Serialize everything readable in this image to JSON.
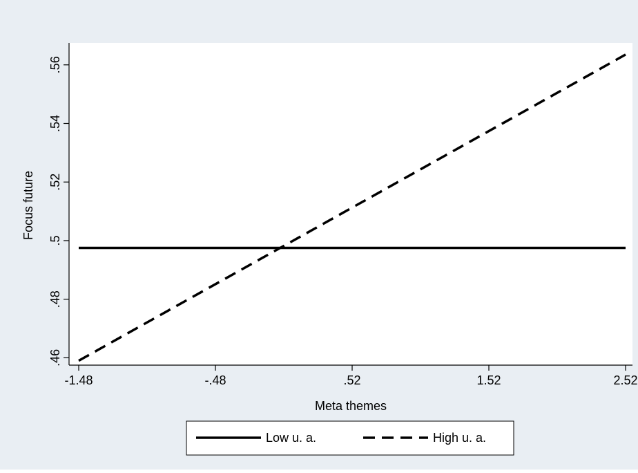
{
  "chart_data": {
    "type": "line",
    "title": "",
    "xlabel": "Meta themes",
    "ylabel": "Focus future",
    "x_ticks": [
      {
        "value": -1.48,
        "label": "-1.48"
      },
      {
        "value": -0.48,
        "label": "-.48"
      },
      {
        "value": 0.52,
        "label": ".52"
      },
      {
        "value": 1.52,
        "label": "1.52"
      },
      {
        "value": 2.52,
        "label": "2.52"
      }
    ],
    "y_ticks": [
      {
        "value": 0.46,
        "label": ".46"
      },
      {
        "value": 0.48,
        "label": ".48"
      },
      {
        "value": 0.5,
        "label": ".5"
      },
      {
        "value": 0.52,
        "label": ".52"
      },
      {
        "value": 0.54,
        "label": ".54"
      },
      {
        "value": 0.56,
        "label": ".56"
      }
    ],
    "xlim": [
      -1.48,
      2.52
    ],
    "ylim": [
      0.4575,
      0.5675
    ],
    "grid": false,
    "legend_position": "bottom",
    "series": [
      {
        "name": "Low u. a.",
        "style": "solid",
        "color": "#000000",
        "x": [
          -1.48,
          2.52
        ],
        "y": [
          0.4975,
          0.4975
        ]
      },
      {
        "name": "High u. a.",
        "style": "dashed",
        "color": "#000000",
        "x": [
          -1.48,
          2.52
        ],
        "y": [
          0.459,
          0.5635
        ]
      }
    ],
    "colors": {
      "outer_background": "#e9eef3",
      "plot_background": "#ffffff",
      "line": "#000000"
    }
  }
}
